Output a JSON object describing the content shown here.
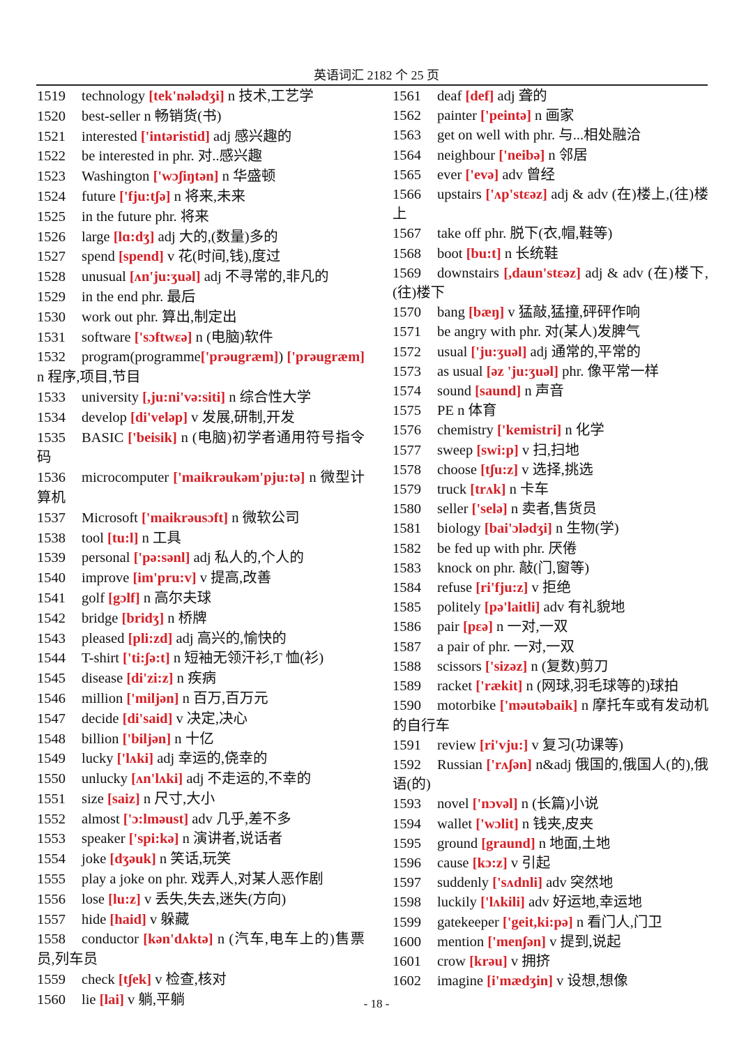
{
  "header": {
    "title": "英语词汇 2182 个  25 页"
  },
  "footer": {
    "page": "- 18 -"
  },
  "colors": {
    "phonetic": "#d42027",
    "text": "#111111"
  },
  "columns": [
    {
      "entries": [
        {
          "num": "1519",
          "word": "technology",
          "ipa": "[tek'nələdʒi]",
          "pos": "n",
          "def": "技术,工艺学"
        },
        {
          "num": "1520",
          "word": "best-seller",
          "ipa": "",
          "pos": "n",
          "def": "畅销货(书)"
        },
        {
          "num": "1521",
          "word": "interested",
          "ipa": "['intəristid]",
          "pos": "adj",
          "def": "感兴趣的"
        },
        {
          "num": "1522",
          "word": "be interested in",
          "ipa": "",
          "pos": "phr.",
          "def": "对..感兴趣"
        },
        {
          "num": "1523",
          "word": "Washington",
          "ipa": "['wɔʃiŋtən]",
          "pos": "n",
          "def": "华盛顿"
        },
        {
          "num": "1524",
          "word": "future",
          "ipa": "['fju:tʃə]",
          "pos": "n",
          "def": "将来,未来"
        },
        {
          "num": "1525",
          "word": "in the future",
          "ipa": "",
          "pos": "phr.",
          "def": "将来"
        },
        {
          "num": "1526",
          "word": "large",
          "ipa": "[lɑ:dʒ]",
          "pos": "adj",
          "def": "大的,(数量)多的"
        },
        {
          "num": "1527",
          "word": "spend",
          "ipa": "[spend]",
          "pos": "v",
          "def": "花(时间,钱),度过"
        },
        {
          "num": "1528",
          "word": "unusual",
          "ipa": "[ʌn'ju:ʒuəl]",
          "pos": "adj",
          "def": "不寻常的,非凡的"
        },
        {
          "num": "1529",
          "word": "in the end",
          "ipa": "",
          "pos": "phr.",
          "def": "最后"
        },
        {
          "num": "1530",
          "word": "work out",
          "ipa": "",
          "pos": "phr.",
          "def": "算出,制定出"
        },
        {
          "num": "1531",
          "word": "software",
          "ipa": "['sɔftwεə]",
          "pos": "n",
          "def": "(电脑)软件"
        },
        {
          "num": "1532",
          "word": "program(programme",
          "ipa": "['prəugræm]",
          "suffix": ")",
          "ipa2": "['prəugræm]",
          "pos": "n",
          "def": "程序,项目,节目"
        },
        {
          "num": "1533",
          "word": "university",
          "ipa": "[,ju:ni'və:siti]",
          "pos": "n",
          "def": "综合性大学"
        },
        {
          "num": "1534",
          "word": "develop",
          "ipa": "[di'veləp]",
          "pos": "v",
          "def": "发展,研制,开发"
        },
        {
          "num": "1535",
          "word": "BASIC",
          "ipa": "['beisik]",
          "pos": "n",
          "def": "(电脑)初学者通用符号指令码"
        },
        {
          "num": "1536",
          "word": "microcomputer",
          "ipa": "['maikrəukəm'pju:tə]",
          "pos": "n",
          "def": "微型计算机"
        },
        {
          "num": "1537",
          "word": "Microsoft",
          "ipa": "['maikrəusɔft]",
          "pos": "n",
          "def": "微软公司"
        },
        {
          "num": "1538",
          "word": "tool",
          "ipa": "[tu:l]",
          "pos": "n",
          "def": "工具"
        },
        {
          "num": "1539",
          "word": "personal",
          "ipa": "['pə:sənl]",
          "pos": "adj",
          "def": "私人的,个人的"
        },
        {
          "num": "1540",
          "word": "improve",
          "ipa": "[im'pru:v]",
          "pos": "v",
          "def": "提高,改善"
        },
        {
          "num": "1541",
          "word": "golf",
          "ipa": "[gɔlf]",
          "pos": "n",
          "def": "高尔夫球"
        },
        {
          "num": "1542",
          "word": "bridge",
          "ipa": "[bridʒ]",
          "pos": "n",
          "def": "桥牌"
        },
        {
          "num": "1543",
          "word": "pleased",
          "ipa": "[pli:zd]",
          "pos": "adj",
          "def": "高兴的,愉快的"
        },
        {
          "num": "1544",
          "word": "T-shirt",
          "ipa": "['ti:ʃə:t]",
          "pos": "n",
          "def": "短袖无领汗衫,T 恤(衫)"
        },
        {
          "num": "1545",
          "word": "disease",
          "ipa": "[di'zi:z]",
          "pos": "n",
          "def": "疾病"
        },
        {
          "num": "1546",
          "word": "million",
          "ipa": "['miljən]",
          "pos": "n",
          "def": "百万,百万元"
        },
        {
          "num": "1547",
          "word": "decide",
          "ipa": "[di'said]",
          "pos": "v",
          "def": "决定,决心"
        },
        {
          "num": "1548",
          "word": "billion",
          "ipa": "['biljən]",
          "pos": "n",
          "def": "十亿"
        },
        {
          "num": "1549",
          "word": "lucky",
          "ipa": "['lʌki]",
          "pos": "adj",
          "def": "幸运的,侥幸的"
        },
        {
          "num": "1550",
          "word": "unlucky",
          "ipa": "[ʌn'lʌki]",
          "pos": "adj",
          "def": "不走运的,不幸的"
        },
        {
          "num": "1551",
          "word": "size",
          "ipa": "[saiz]",
          "pos": "n",
          "def": "尺寸,大小"
        },
        {
          "num": "1552",
          "word": "almost",
          "ipa": "['ɔ:lməust]",
          "pos": "adv",
          "def": "几乎,差不多"
        },
        {
          "num": "1553",
          "word": "speaker",
          "ipa": "['spi:kə]",
          "pos": "n",
          "def": "演讲者,说话者"
        },
        {
          "num": "1554",
          "word": "joke",
          "ipa": "[dʒəuk]",
          "pos": "n",
          "def": "笑话,玩笑"
        },
        {
          "num": "1555",
          "word": "play a joke on",
          "ipa": "",
          "pos": "phr.",
          "def": "戏弄人,对某人恶作剧"
        },
        {
          "num": "1556",
          "word": "lose",
          "ipa": "[lu:z]",
          "pos": "v",
          "def": "丢失,失去,迷失(方向)"
        },
        {
          "num": "1557",
          "word": "hide",
          "ipa": "[haid]",
          "pos": "v",
          "def": "躲藏"
        },
        {
          "num": "1558",
          "word": "conductor",
          "ipa": "[kən'dʌktə]",
          "pos": "n",
          "def": "(汽车,电车上的)售票员,列车员"
        },
        {
          "num": "1559",
          "word": "check",
          "ipa": "[tʃek]",
          "pos": "v",
          "def": "检查,核对"
        },
        {
          "num": "1560",
          "word": "lie",
          "ipa": "[lai]",
          "pos": "v",
          "def": "躺,平躺"
        }
      ]
    },
    {
      "entries": [
        {
          "num": "1561",
          "word": "deaf",
          "ipa": "[def]",
          "pos": "adj",
          "def": "聋的"
        },
        {
          "num": "1562",
          "word": "painter",
          "ipa": "['peintə]",
          "pos": "n",
          "def": "画家"
        },
        {
          "num": "1563",
          "word": "get on well with",
          "ipa": "",
          "pos": "phr.",
          "def": "与...相处融洽"
        },
        {
          "num": "1564",
          "word": "neighbour",
          "ipa": "['neibə]",
          "pos": "n",
          "def": "邻居"
        },
        {
          "num": "1565",
          "word": "ever",
          "ipa": "['evə]",
          "pos": "adv",
          "def": "曾经"
        },
        {
          "num": "1566",
          "word": "upstairs",
          "ipa": "['ʌp'stεəz]",
          "pos": "adj & adv",
          "def": "(在)楼上,(往)楼上"
        },
        {
          "num": "1567",
          "word": "take off",
          "ipa": "",
          "pos": "phr.",
          "def": "脱下(衣,帽,鞋等)"
        },
        {
          "num": "1568",
          "word": "boot",
          "ipa": "[bu:t]",
          "pos": "n",
          "def": "长统鞋"
        },
        {
          "num": "1569",
          "word": "downstairs",
          "ipa": "[,daun'stεəz]",
          "pos": "adj & adv",
          "def": "(在)楼下,(往)楼下"
        },
        {
          "num": "1570",
          "word": "bang",
          "ipa": "[bæŋ]",
          "pos": "v",
          "def": "猛敲,猛撞,砰砰作响"
        },
        {
          "num": "1571",
          "word": "be angry with",
          "ipa": "",
          "pos": "phr.",
          "def": "对(某人)发脾气"
        },
        {
          "num": "1572",
          "word": "usual",
          "ipa": "['ju:ʒuəl]",
          "pos": "adj",
          "def": "通常的,平常的"
        },
        {
          "num": "1573",
          "word": "as usual",
          "ipa": "[əz 'ju:ʒuəl]",
          "pos": "phr.",
          "def": "像平常一样"
        },
        {
          "num": "1574",
          "word": "sound",
          "ipa": "[saund]",
          "pos": "n",
          "def": "声音"
        },
        {
          "num": "1575",
          "word": "PE",
          "ipa": "",
          "pos": "n",
          "def": "体育"
        },
        {
          "num": "1576",
          "word": "chemistry",
          "ipa": "['kemistri]",
          "pos": "n",
          "def": "化学"
        },
        {
          "num": "1577",
          "word": "sweep",
          "ipa": "[swi:p]",
          "pos": "v",
          "def": "扫,扫地"
        },
        {
          "num": "1578",
          "word": "choose",
          "ipa": "[tʃu:z]",
          "pos": "v",
          "def": "选择,挑选"
        },
        {
          "num": "1579",
          "word": "truck",
          "ipa": "[trʌk]",
          "pos": "n",
          "def": "卡车"
        },
        {
          "num": "1580",
          "word": "seller",
          "ipa": "['selə]",
          "pos": "n",
          "def": "卖者,售货员"
        },
        {
          "num": "1581",
          "word": "biology",
          "ipa": "[bai'ɔlədʒi]",
          "pos": "n",
          "def": "生物(学)"
        },
        {
          "num": "1582",
          "word": "be fed up with",
          "ipa": "",
          "pos": "phr.",
          "def": "厌倦"
        },
        {
          "num": "1583",
          "word": "knock on",
          "ipa": "",
          "pos": "phr.",
          "def": "敲(门,窗等)"
        },
        {
          "num": "1584",
          "word": "refuse",
          "ipa": "[ri'fju:z]",
          "pos": "v",
          "def": "拒绝"
        },
        {
          "num": "1585",
          "word": "politely",
          "ipa": "[pə'laitli]",
          "pos": "adv",
          "def": "有礼貌地"
        },
        {
          "num": "1586",
          "word": "pair",
          "ipa": "[pεə]",
          "pos": "n",
          "def": "一对,一双"
        },
        {
          "num": "1587",
          "word": "a pair of",
          "ipa": "",
          "pos": "phr.",
          "def": "一对,一双"
        },
        {
          "num": "1588",
          "word": "scissors",
          "ipa": "['sizəz]",
          "pos": "n",
          "def": "(复数)剪刀"
        },
        {
          "num": "1589",
          "word": "racket",
          "ipa": "['rækit]",
          "pos": "n",
          "def": "(网球,羽毛球等的)球拍"
        },
        {
          "num": "1590",
          "word": "motorbike",
          "ipa": "['məutəbaik]",
          "pos": "n",
          "def": "摩托车或有发动机的自行车"
        },
        {
          "num": "1591",
          "word": "review",
          "ipa": "[ri'vju:]",
          "pos": "v",
          "def": "复习(功课等)"
        },
        {
          "num": "1592",
          "word": "Russian",
          "ipa": "['rʌʃən]",
          "pos": "n&adj",
          "def": "俄国的,俄国人(的),俄语(的)"
        },
        {
          "num": "1593",
          "word": "novel",
          "ipa": "['nɔvəl]",
          "pos": "n",
          "def": "(长篇)小说"
        },
        {
          "num": "1594",
          "word": "wallet",
          "ipa": "['wɔlit]",
          "pos": "n",
          "def": "钱夹,皮夹"
        },
        {
          "num": "1595",
          "word": "ground",
          "ipa": "[graund]",
          "pos": "n",
          "def": "地面,土地"
        },
        {
          "num": "1596",
          "word": "cause",
          "ipa": "[kɔ:z]",
          "pos": "v",
          "def": "引起"
        },
        {
          "num": "1597",
          "word": "suddenly",
          "ipa": "['sʌdnli]",
          "pos": "adv",
          "def": "突然地"
        },
        {
          "num": "1598",
          "word": "luckily",
          "ipa": "['lʌkili]",
          "pos": "adv",
          "def": "好运地,幸运地"
        },
        {
          "num": "1599",
          "word": "gatekeeper",
          "ipa": "['geit,ki:pə]",
          "pos": "n",
          "def": "看门人,门卫"
        },
        {
          "num": "1600",
          "word": "mention",
          "ipa": "['menʃən]",
          "pos": "v",
          "def": "提到,说起"
        },
        {
          "num": "1601",
          "word": "crow",
          "ipa": "[krəu]",
          "pos": "v",
          "def": "拥挤"
        },
        {
          "num": "1602",
          "word": "imagine",
          "ipa": "[i'mædʒin]",
          "pos": "v",
          "def": "设想,想像"
        }
      ]
    }
  ]
}
